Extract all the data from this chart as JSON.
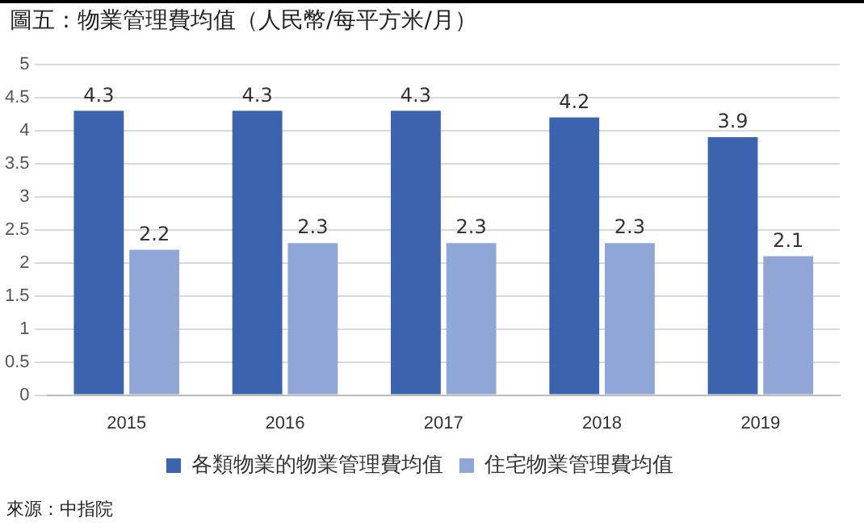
{
  "chart_data": {
    "type": "bar",
    "title": "圖五：物業管理費均值（人民幣/每平方米/月）",
    "categories": [
      "2015",
      "2016",
      "2017",
      "2018",
      "2019"
    ],
    "series": [
      {
        "name": "各類物業的物業管理費均值",
        "color": "#3c63ad",
        "values": [
          4.3,
          4.3,
          4.3,
          4.2,
          3.9
        ]
      },
      {
        "name": "住宅物業管理費均值",
        "color": "#8fa6d6",
        "values": [
          2.2,
          2.3,
          2.3,
          2.3,
          2.1
        ]
      }
    ],
    "ylim": [
      0,
      5
    ],
    "yticks": [
      0,
      0.5,
      1,
      1.5,
      2,
      2.5,
      3,
      3.5,
      4,
      4.5,
      5
    ],
    "grid": "y",
    "legend": "bottom",
    "data_labels": true,
    "annotations": [
      "來源：中指院"
    ]
  }
}
